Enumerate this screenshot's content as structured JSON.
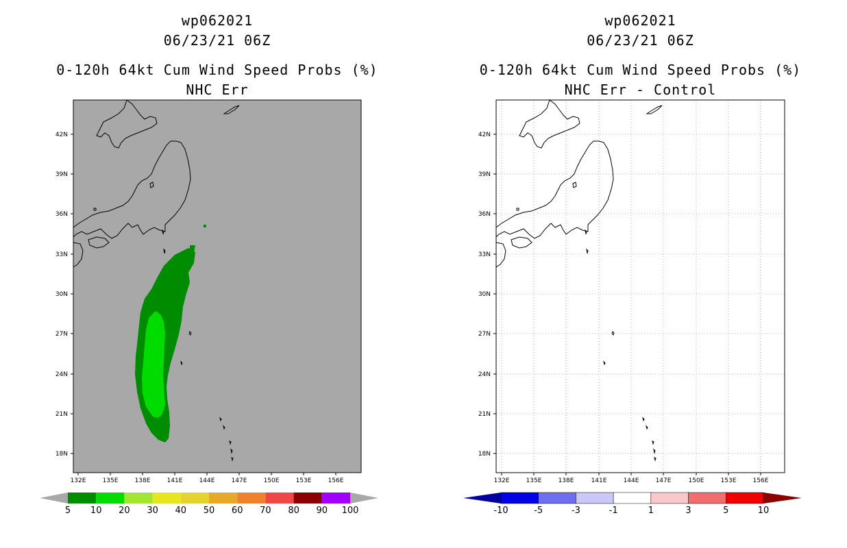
{
  "panels": [
    {
      "id": "left",
      "storm_id": "wp062021",
      "datetime": "06/23/21 06Z",
      "product": "0-120h 64kt Cum Wind Speed Probs (%)",
      "subtitle": "NHC Err",
      "background": "#a8a8a8",
      "colorbar": {
        "labels": [
          "5",
          "10",
          "20",
          "30",
          "40",
          "50",
          "60",
          "70",
          "80",
          "90",
          "100"
        ],
        "colors": [
          "#008c00",
          "#00dc00",
          "#a0e632",
          "#e6e620",
          "#e6d232",
          "#e6aa28",
          "#f0822d",
          "#f04646",
          "#8c0000",
          "#a000ff"
        ],
        "arrow_color": "#a8a8a8"
      }
    },
    {
      "id": "right",
      "storm_id": "wp062021",
      "datetime": "06/23/21 06Z",
      "product": "0-120h 64kt Cum Wind Speed Probs (%)",
      "subtitle": "NHC Err - Control",
      "background": "#ffffff",
      "colorbar": {
        "labels": [
          "-10",
          "-5",
          "-3",
          "-1",
          "1",
          "3",
          "5",
          "10"
        ],
        "colors": [
          "#0000e6",
          "#6e6ef0",
          "#c8c8fa",
          "#ffffff",
          "#fac8c8",
          "#f06e6e",
          "#f00000"
        ],
        "left_arrow_color": "#0000a0",
        "right_arrow_color": "#8c0000"
      }
    }
  ],
  "map": {
    "lat_labels": [
      "42N",
      "39N",
      "36N",
      "33N",
      "30N",
      "27N",
      "24N",
      "21N",
      "18N"
    ],
    "lon_labels": [
      "132E",
      "135E",
      "138E",
      "141E",
      "144E",
      "147E",
      "150E",
      "153E",
      "156E"
    ]
  },
  "prob_field": {
    "colors": {
      "p5": "#008c00",
      "p10": "#00dc00"
    }
  }
}
